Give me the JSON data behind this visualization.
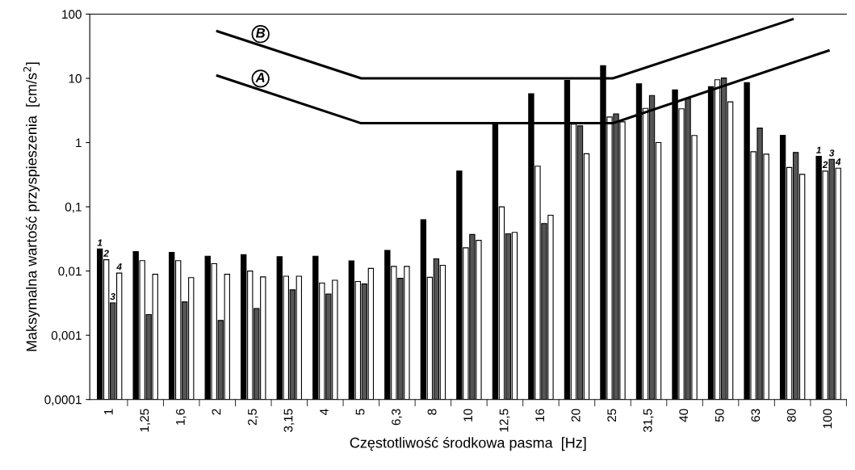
{
  "chart_data": {
    "type": "bar",
    "xlabel": "Częstotliwość środkowa pasma  [Hz]",
    "ylabel": "Maksymalna wartość przyspieszenia  [cm/s$^{2}$]",
    "categories": [
      "1",
      "1,25",
      "1,6",
      "2",
      "2,5",
      "3,15",
      "4",
      "5",
      "6,3",
      "8",
      "10",
      "12,5",
      "16",
      "20",
      "25",
      "31,5",
      "40",
      "50",
      "63",
      "80",
      "100"
    ],
    "log": true,
    "ylim": [
      0.0001,
      100
    ],
    "yticks": [
      {
        "value": 0.0001,
        "label": "0,0001"
      },
      {
        "value": 0.001,
        "label": "0,001"
      },
      {
        "value": 0.01,
        "label": "0,01"
      },
      {
        "value": 0.1,
        "label": "0,1"
      },
      1,
      10,
      100
    ],
    "grid": false,
    "legend": false,
    "series": [
      {
        "name": "1",
        "color": "#000000",
        "values": [
          0.022,
          0.02,
          0.0195,
          0.017,
          0.018,
          0.0167,
          0.017,
          0.0144,
          0.021,
          0.063,
          0.36,
          1.94,
          5.75,
          9.3,
          15.7,
          8.2,
          6.6,
          7.4,
          8.6,
          1.3,
          0.61
        ]
      },
      {
        "name": "2",
        "color": "#ffffff",
        "values": [
          0.015,
          0.0145,
          0.0145,
          0.013,
          0.01,
          0.0083,
          0.0065,
          0.0069,
          0.0118,
          0.008,
          0.023,
          0.1,
          0.43,
          1.94,
          2.5,
          3.4,
          3.35,
          9.5,
          0.72,
          0.41,
          0.36
        ]
      },
      {
        "name": "3",
        "color": "#555555",
        "values": [
          0.0032,
          0.0021,
          0.0033,
          0.0017,
          0.0026,
          0.0051,
          0.0044,
          0.0063,
          0.0077,
          0.0155,
          0.037,
          0.038,
          0.055,
          1.82,
          2.8,
          5.4,
          4.8,
          10.1,
          1.68,
          0.7,
          0.55
        ]
      },
      {
        "name": "4",
        "color": "#ffffff",
        "values": [
          0.0093,
          0.0089,
          0.0079,
          0.0089,
          0.0081,
          0.0083,
          0.0072,
          0.011,
          0.0118,
          0.0123,
          0.03,
          0.04,
          0.074,
          0.67,
          2.1,
          1.0,
          1.29,
          4.3,
          0.66,
          0.32,
          0.4
        ]
      },
      {
        "name": "A",
        "type": "line",
        "color": "#000000",
        "values": [
          null,
          null,
          null,
          11,
          null,
          null,
          null,
          2,
          null,
          null,
          null,
          null,
          null,
          null,
          2,
          null,
          null,
          null,
          null,
          null,
          27
        ]
      },
      {
        "name": "B",
        "type": "line",
        "color": "#000000",
        "values": [
          null,
          null,
          null,
          54,
          null,
          null,
          null,
          10,
          null,
          null,
          null,
          null,
          null,
          null,
          10,
          null,
          null,
          null,
          null,
          83,
          null
        ]
      }
    ]
  }
}
